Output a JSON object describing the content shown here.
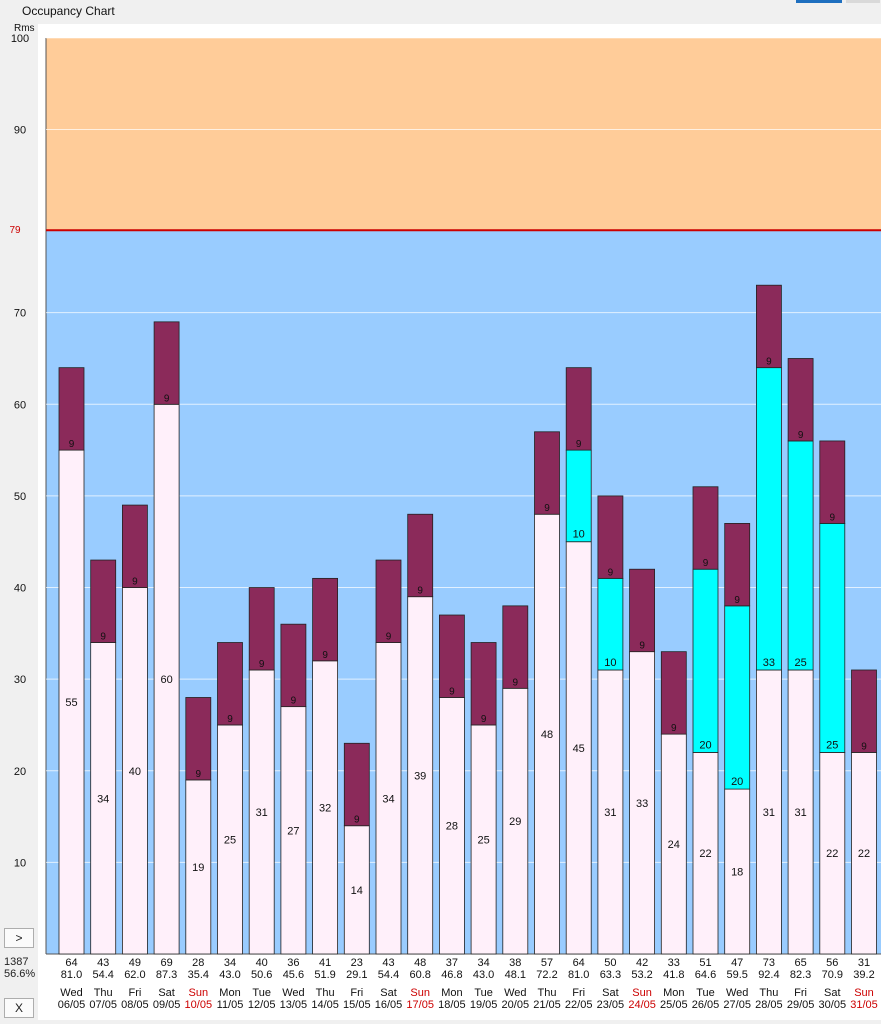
{
  "window": {
    "title": "Occupancy Chart"
  },
  "controls": {
    "expand_label": ">",
    "close_label": "X"
  },
  "totals": {
    "rooms": "1387",
    "percent": "56.6%"
  },
  "colors": {
    "available_band": "#99ccff",
    "over_capacity_band": "#ffcc99",
    "capacity_line": "#cc0000",
    "base_segment": "#fff0fa",
    "secondary_segment": "#00ffff",
    "top_segment": "#8b2a5a",
    "sunday_label": "#cc0000"
  },
  "chart_data": {
    "type": "bar",
    "stacked": true,
    "yunit": "Rms",
    "ylim": [
      0,
      100
    ],
    "yticks": [
      10,
      20,
      30,
      40,
      50,
      60,
      70,
      90,
      100
    ],
    "capacity": 79,
    "capacity_label": "79",
    "grid": true,
    "columns": [
      {
        "day": "Wed",
        "date": "06/05",
        "total": "64",
        "pct": "81.0",
        "base": 55,
        "secondary": 0,
        "top": 9,
        "sun": false
      },
      {
        "day": "Thu",
        "date": "07/05",
        "total": "43",
        "pct": "54.4",
        "base": 34,
        "secondary": 0,
        "top": 9,
        "sun": false
      },
      {
        "day": "Fri",
        "date": "08/05",
        "total": "49",
        "pct": "62.0",
        "base": 40,
        "secondary": 0,
        "top": 9,
        "sun": false
      },
      {
        "day": "Sat",
        "date": "09/05",
        "total": "69",
        "pct": "87.3",
        "base": 60,
        "secondary": 0,
        "top": 9,
        "sun": false
      },
      {
        "day": "Sun",
        "date": "10/05",
        "total": "28",
        "pct": "35.4",
        "base": 19,
        "secondary": 0,
        "top": 9,
        "sun": true
      },
      {
        "day": "Mon",
        "date": "11/05",
        "total": "34",
        "pct": "43.0",
        "base": 25,
        "secondary": 0,
        "top": 9,
        "sun": false
      },
      {
        "day": "Tue",
        "date": "12/05",
        "total": "40",
        "pct": "50.6",
        "base": 31,
        "secondary": 0,
        "top": 9,
        "sun": false
      },
      {
        "day": "Wed",
        "date": "13/05",
        "total": "36",
        "pct": "45.6",
        "base": 27,
        "secondary": 0,
        "top": 9,
        "sun": false
      },
      {
        "day": "Thu",
        "date": "14/05",
        "total": "41",
        "pct": "51.9",
        "base": 32,
        "secondary": 0,
        "top": 9,
        "sun": false
      },
      {
        "day": "Fri",
        "date": "15/05",
        "total": "23",
        "pct": "29.1",
        "base": 14,
        "secondary": 0,
        "top": 9,
        "sun": false
      },
      {
        "day": "Sat",
        "date": "16/05",
        "total": "43",
        "pct": "54.4",
        "base": 34,
        "secondary": 0,
        "top": 9,
        "sun": false
      },
      {
        "day": "Sun",
        "date": "17/05",
        "total": "48",
        "pct": "60.8",
        "base": 39,
        "secondary": 0,
        "top": 9,
        "sun": true
      },
      {
        "day": "Mon",
        "date": "18/05",
        "total": "37",
        "pct": "46.8",
        "base": 28,
        "secondary": 0,
        "top": 9,
        "sun": false
      },
      {
        "day": "Tue",
        "date": "19/05",
        "total": "34",
        "pct": "43.0",
        "base": 25,
        "secondary": 0,
        "top": 9,
        "sun": false
      },
      {
        "day": "Wed",
        "date": "20/05",
        "total": "38",
        "pct": "48.1",
        "base": 29,
        "secondary": 0,
        "top": 9,
        "sun": false
      },
      {
        "day": "Thu",
        "date": "21/05",
        "total": "57",
        "pct": "72.2",
        "base": 48,
        "secondary": 0,
        "top": 9,
        "sun": false
      },
      {
        "day": "Fri",
        "date": "22/05",
        "total": "64",
        "pct": "81.0",
        "base": 45,
        "secondary": 10,
        "top": 9,
        "sun": false
      },
      {
        "day": "Sat",
        "date": "23/05",
        "total": "50",
        "pct": "63.3",
        "base": 31,
        "secondary": 10,
        "top": 9,
        "sun": false
      },
      {
        "day": "Sun",
        "date": "24/05",
        "total": "42",
        "pct": "53.2",
        "base": 33,
        "secondary": 0,
        "top": 9,
        "sun": true
      },
      {
        "day": "Mon",
        "date": "25/05",
        "total": "33",
        "pct": "41.8",
        "base": 24,
        "secondary": 0,
        "top": 9,
        "sun": false
      },
      {
        "day": "Tue",
        "date": "26/05",
        "total": "51",
        "pct": "64.6",
        "base": 22,
        "secondary": 20,
        "top": 9,
        "sun": false
      },
      {
        "day": "Wed",
        "date": "27/05",
        "total": "47",
        "pct": "59.5",
        "base": 18,
        "secondary": 20,
        "top": 9,
        "sun": false
      },
      {
        "day": "Thu",
        "date": "28/05",
        "total": "73",
        "pct": "92.4",
        "base": 31,
        "secondary": 33,
        "top": 9,
        "sun": false
      },
      {
        "day": "Fri",
        "date": "29/05",
        "total": "65",
        "pct": "82.3",
        "base": 31,
        "secondary": 25,
        "top": 9,
        "sun": false
      },
      {
        "day": "Sat",
        "date": "30/05",
        "total": "56",
        "pct": "70.9",
        "base": 22,
        "secondary": 25,
        "top": 9,
        "sun": false
      },
      {
        "day": "Sun",
        "date": "31/05",
        "total": "31",
        "pct": "39.2",
        "base": 22,
        "secondary": 0,
        "top": 9,
        "sun": true
      }
    ]
  }
}
